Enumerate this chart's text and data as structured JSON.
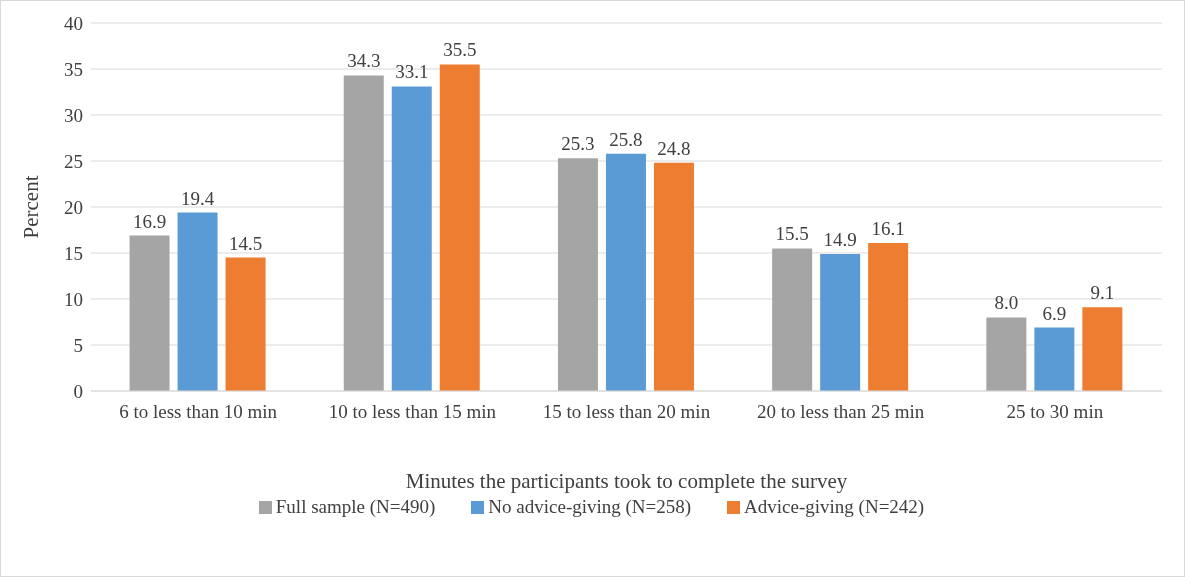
{
  "chart_data": {
    "type": "bar",
    "xlabel": "Minutes the participants took to complete the survey",
    "ylabel": "Percent",
    "categories": [
      "6 to less than 10 min",
      "10 to less than 15 min",
      "15 to less than 20 min",
      "20 to less than 25 min",
      "25 to 30 min"
    ],
    "series": [
      {
        "name": "Full sample (N=490)",
        "color": "#a5a5a5",
        "values": [
          16.9,
          34.3,
          25.3,
          15.5,
          8.0
        ],
        "value_labels": [
          "16.9",
          "34.3",
          "25.3",
          "15.5",
          "8.0"
        ]
      },
      {
        "name": "No advice-giving (N=258)",
        "color": "#5b9bd5",
        "values": [
          19.4,
          33.1,
          25.8,
          14.9,
          6.9
        ],
        "value_labels": [
          "19.4",
          "33.1",
          "25.8",
          "14.9",
          "6.9"
        ]
      },
      {
        "name": "Advice-giving (N=242)",
        "color": "#ed7d31",
        "values": [
          14.5,
          35.5,
          24.8,
          16.1,
          9.1
        ],
        "value_labels": [
          "14.5",
          "35.5",
          "24.8",
          "16.1",
          "9.1"
        ]
      }
    ],
    "ylim": [
      0,
      40
    ],
    "yticks": [
      0,
      5,
      10,
      15,
      20,
      25,
      30,
      35,
      40
    ],
    "grid": "y",
    "legend": "bottom"
  }
}
